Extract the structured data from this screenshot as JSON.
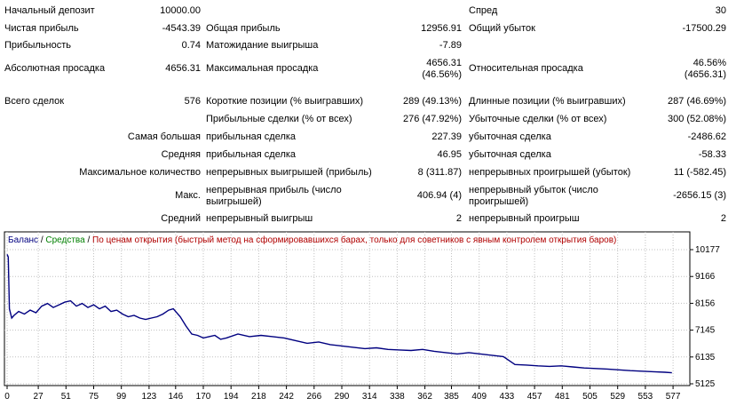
{
  "report": {
    "initial_deposit_label": "Начальный депозит",
    "initial_deposit_value": "10000.00",
    "spread_label": "Спред",
    "spread_value": "30",
    "net_profit_label": "Чистая прибыль",
    "net_profit_value": "-4543.39",
    "gross_profit_label": "Общая прибыль",
    "gross_profit_value": "12956.91",
    "gross_loss_label": "Общий убыток",
    "gross_loss_value": "-17500.29",
    "profit_factor_label": "Прибыльность",
    "profit_factor_value": "0.74",
    "expected_payoff_label": "Матожидание выигрыша",
    "expected_payoff_value": "-7.89",
    "abs_dd_label": "Абсолютная просадка",
    "abs_dd_value": "4656.31",
    "max_dd_label": "Максимальная просадка",
    "max_dd_value_1": "4656.31",
    "max_dd_value_2": "(46.56%)",
    "rel_dd_label": "Относительная просадка",
    "rel_dd_value_1": "46.56%",
    "rel_dd_value_2": "(4656.31)",
    "total_trades_label": "Всего сделок",
    "total_trades_value": "576",
    "short_label": "Короткие позиции (% выигравших)",
    "short_value": "289 (49.13%)",
    "long_label": "Длинные позиции (% выигравших)",
    "long_value": "287 (46.69%)",
    "profit_trades_label": "Прибыльные сделки (% от всех)",
    "profit_trades_value": "276 (47.92%)",
    "loss_trades_label": "Убыточные сделки (% от всех)",
    "loss_trades_value": "300 (52.08%)",
    "largest_label": "Самая большая",
    "largest_profit_label": "прибыльная сделка",
    "largest_profit_value": "227.39",
    "largest_loss_label": "убыточная сделка",
    "largest_loss_value": "-2486.62",
    "average_label": "Средняя",
    "average_profit_label": "прибыльная сделка",
    "average_profit_value": "46.95",
    "average_loss_label": "убыточная сделка",
    "average_loss_value": "-58.33",
    "max_count_label": "Максимальное количество",
    "max_cons_wins_label": "непрерывных выигрышей (прибыль)",
    "max_cons_wins_value": "8 (311.87)",
    "max_cons_losses_label": "непрерывных проигрышей (убыток)",
    "max_cons_losses_value": "11 (-582.45)",
    "max_label": "Макс.",
    "max_cons_profit_label": "непрерывная прибыль (число выигрышей)",
    "max_cons_profit_value": "406.94 (4)",
    "max_cons_loss_label": "непрерывный убыток (число проигрышей)",
    "max_cons_loss_value": "-2656.15 (3)",
    "avg_label": "Средний",
    "avg_cons_wins_label": "непрерывный выигрыш",
    "avg_cons_wins_value": "2",
    "avg_cons_losses_label": "непрерывный проигрыш",
    "avg_cons_losses_value": "2"
  },
  "chart_legend": {
    "balance": "Баланс",
    "sep": "/",
    "equity": "Средства",
    "method": "По ценам открытия (быстрый метод на сформировавшихся барах, только для советников с явным контролем открытия баров)"
  },
  "colors": {
    "balance_line": "#000080",
    "balance_text": "#000080",
    "equity_text": "#008000",
    "method_text": "#b00000",
    "grid": "#c0c0c0"
  },
  "chart_data": {
    "type": "line",
    "title": "",
    "xlabel": "",
    "ylabel": "",
    "x_ticks": [
      0,
      27,
      51,
      75,
      99,
      123,
      146,
      170,
      194,
      218,
      242,
      266,
      290,
      314,
      338,
      362,
      385,
      409,
      433,
      457,
      481,
      505,
      529,
      553,
      577
    ],
    "y_ticks": [
      "10177",
      "9166",
      "8156",
      "7145",
      "6135",
      "5125"
    ],
    "ylim": [
      5125,
      10177
    ],
    "xlim": [
      0,
      590
    ],
    "grid": true,
    "series": [
      {
        "x": [
          0,
          1,
          2,
          4,
          6,
          10,
          15,
          20,
          25,
          30,
          35,
          40,
          45,
          50,
          55,
          60,
          65,
          70,
          75,
          80,
          85,
          90,
          95,
          100,
          105,
          110,
          115,
          120,
          125,
          130,
          135,
          140,
          144,
          150,
          155,
          160,
          165,
          170,
          175,
          180,
          185,
          190,
          200,
          210,
          220,
          230,
          240,
          250,
          260,
          270,
          280,
          290,
          300,
          310,
          320,
          330,
          340,
          350,
          360,
          370,
          380,
          390,
          400,
          410,
          420,
          430,
          440,
          450,
          460,
          470,
          480,
          490,
          500,
          510,
          520,
          530,
          540,
          550,
          560,
          570,
          576
        ],
        "values": [
          10000,
          9900,
          7950,
          7600,
          7700,
          7850,
          7750,
          7900,
          7800,
          8050,
          8150,
          8000,
          8100,
          8200,
          8250,
          8050,
          8150,
          8000,
          8100,
          7950,
          8050,
          7850,
          7900,
          7750,
          7650,
          7700,
          7600,
          7550,
          7600,
          7650,
          7750,
          7900,
          7950,
          7650,
          7300,
          7000,
          6950,
          6850,
          6900,
          6950,
          6800,
          6850,
          7000,
          6900,
          6950,
          6900,
          6850,
          6750,
          6650,
          6700,
          6600,
          6550,
          6500,
          6450,
          6480,
          6420,
          6400,
          6380,
          6420,
          6350,
          6300,
          6250,
          6300,
          6250,
          6200,
          6150,
          5850,
          5830,
          5800,
          5780,
          5800,
          5760,
          5720,
          5700,
          5680,
          5650,
          5620,
          5600,
          5580,
          5560,
          5540
        ]
      }
    ]
  }
}
